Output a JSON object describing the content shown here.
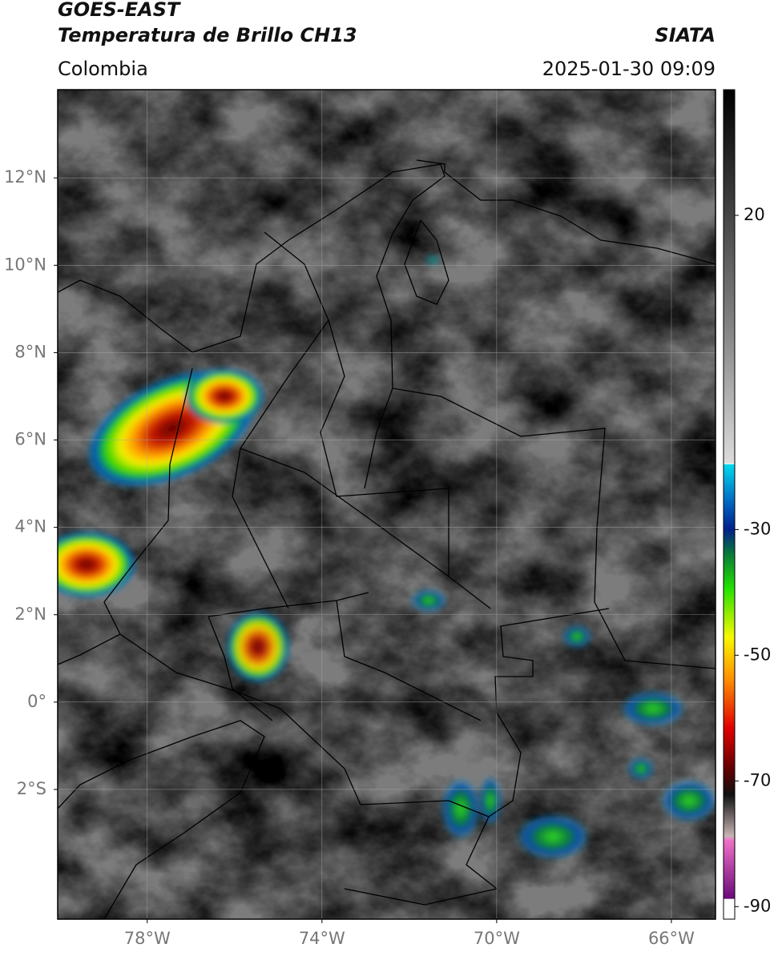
{
  "header": {
    "title": "GOES-EAST",
    "subtitle": "Temperatura de Brillo CH13",
    "source": "SIATA",
    "region": "Colombia",
    "datetime": "2025-01-30 09:09"
  },
  "map": {
    "xlim": [
      -80.05,
      -64.99
    ],
    "ylim": [
      -4.97,
      14.02
    ],
    "xticks": [
      {
        "value": -78,
        "label": "78°W"
      },
      {
        "value": -74,
        "label": "74°W"
      },
      {
        "value": -70,
        "label": "70°W"
      },
      {
        "value": -66,
        "label": "66°W"
      }
    ],
    "yticks": [
      {
        "value": 12,
        "label": "12°N"
      },
      {
        "value": 10,
        "label": "10°N"
      },
      {
        "value": 8,
        "label": "8°N"
      },
      {
        "value": 6,
        "label": "6°N"
      },
      {
        "value": 4,
        "label": "4°N"
      },
      {
        "value": 2,
        "label": "2°N"
      },
      {
        "value": 0,
        "label": "0°"
      },
      {
        "value": -2,
        "label": "2°S"
      }
    ],
    "grid": true
  },
  "colorbar": {
    "lim": [
      -92,
      40
    ],
    "ticks": [
      20,
      -30,
      -50,
      -70,
      -90
    ]
  }
}
